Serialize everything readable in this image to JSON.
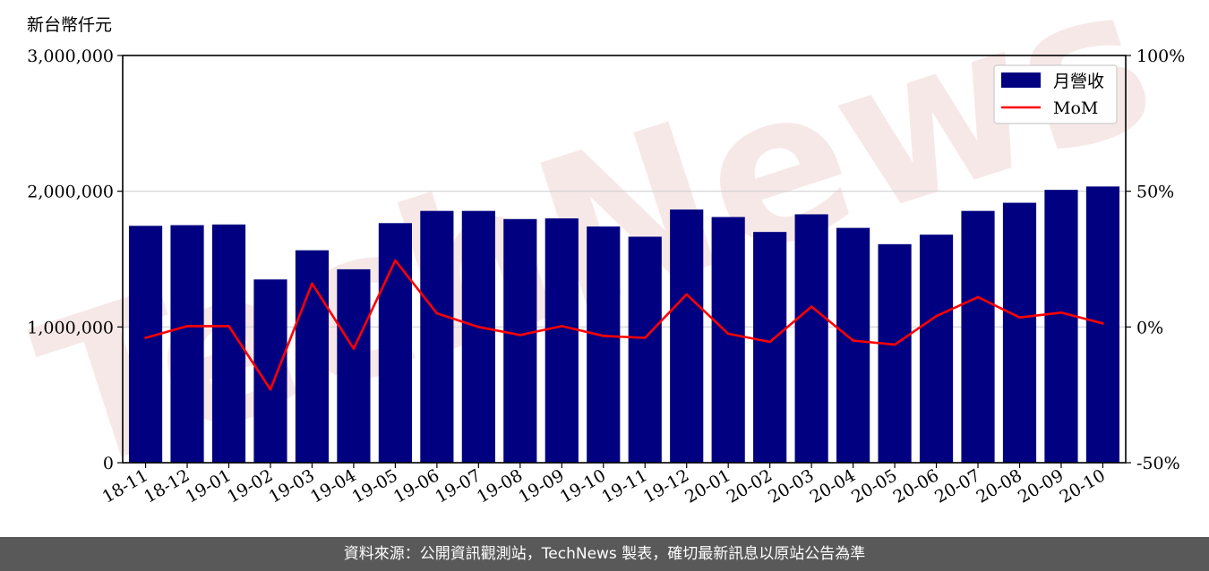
{
  "chart_data": {
    "type": "bar",
    "unit_label": "新台幣仟元",
    "categories": [
      "18-11",
      "18-12",
      "19-01",
      "19-02",
      "19-03",
      "19-04",
      "19-05",
      "19-06",
      "19-07",
      "19-08",
      "19-09",
      "19-10",
      "19-11",
      "19-12",
      "20-01",
      "20-02",
      "20-03",
      "20-04",
      "20-05",
      "20-06",
      "20-07",
      "20-08",
      "20-09",
      "20-10"
    ],
    "series": [
      {
        "name": "月營收",
        "type": "bar",
        "axis": "left",
        "color": "#000080",
        "values": [
          1745000,
          1750000,
          1755000,
          1350000,
          1565000,
          1425000,
          1765000,
          1855000,
          1855000,
          1795000,
          1800000,
          1740000,
          1665000,
          1865000,
          1810000,
          1700000,
          1830000,
          1730000,
          1610000,
          1680000,
          1855000,
          1915000,
          2010000,
          2035000
        ]
      },
      {
        "name": "MoM",
        "type": "line",
        "axis": "right",
        "color": "#ff0000",
        "values": [
          -4,
          0.3,
          0.3,
          -23,
          16,
          -8,
          24.5,
          5,
          0,
          -3,
          0.3,
          -3.3,
          -4,
          12,
          -2.5,
          -5.5,
          7.5,
          -5,
          -6.5,
          4,
          11,
          3.5,
          5.3,
          1.3
        ]
      }
    ],
    "y_left": {
      "ylim": [
        0,
        3000000
      ],
      "ticks": [
        "0",
        "1,000,000",
        "2,000,000",
        "3,000,000"
      ],
      "tick_values": [
        0,
        1000000,
        2000000,
        3000000
      ]
    },
    "y_right": {
      "ylim": [
        -50,
        100
      ],
      "ticks": [
        "-50%",
        "0%",
        "50%",
        "100%"
      ],
      "tick_values": [
        -50,
        0,
        50,
        100
      ]
    },
    "grid": "horizontal",
    "legend_position": "top-right"
  },
  "watermark": {
    "text": "TechNews",
    "color": "#f2d6d6"
  },
  "footer": {
    "text": "資料來源：公開資訊觀測站，TechNews 製表，確切最新訊息以原站公告為準"
  }
}
